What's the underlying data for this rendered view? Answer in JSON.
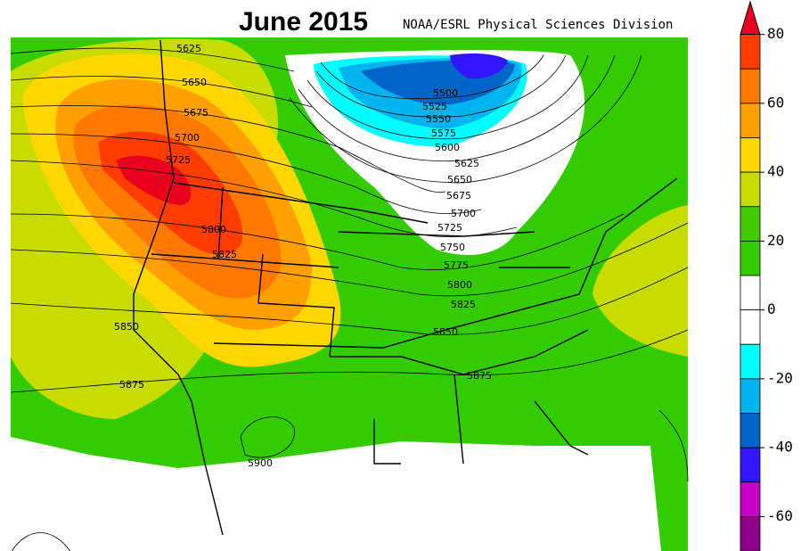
{
  "map": {
    "title": "June 2015",
    "credit": "NOAA/ESRL Physical Sciences Division",
    "contour_labels": [
      5625,
      5650,
      5675,
      5700,
      5725,
      5800,
      5825,
      5850,
      5875,
      5900,
      5500,
      5525,
      5550,
      5575,
      5600,
      5625,
      5650,
      5675,
      5700,
      5725,
      5750,
      5775,
      5800,
      5825,
      5850,
      5875
    ],
    "colorbar": {
      "ticks": [
        80,
        60,
        40,
        20,
        0,
        -20,
        -40,
        -60
      ],
      "limits": [
        90,
        -70
      ],
      "colors": [
        "#e8001c",
        "#ff3c00",
        "#ff7800",
        "#ffa000",
        "#ffd700",
        "#c8dc00",
        "#40cc00",
        "#33cc00",
        "#ffffff",
        "#ffffff",
        "#00ffff",
        "#00b4f0",
        "#0064c8",
        "#3214ff",
        "#c800c8",
        "#8c008c"
      ]
    }
  }
}
